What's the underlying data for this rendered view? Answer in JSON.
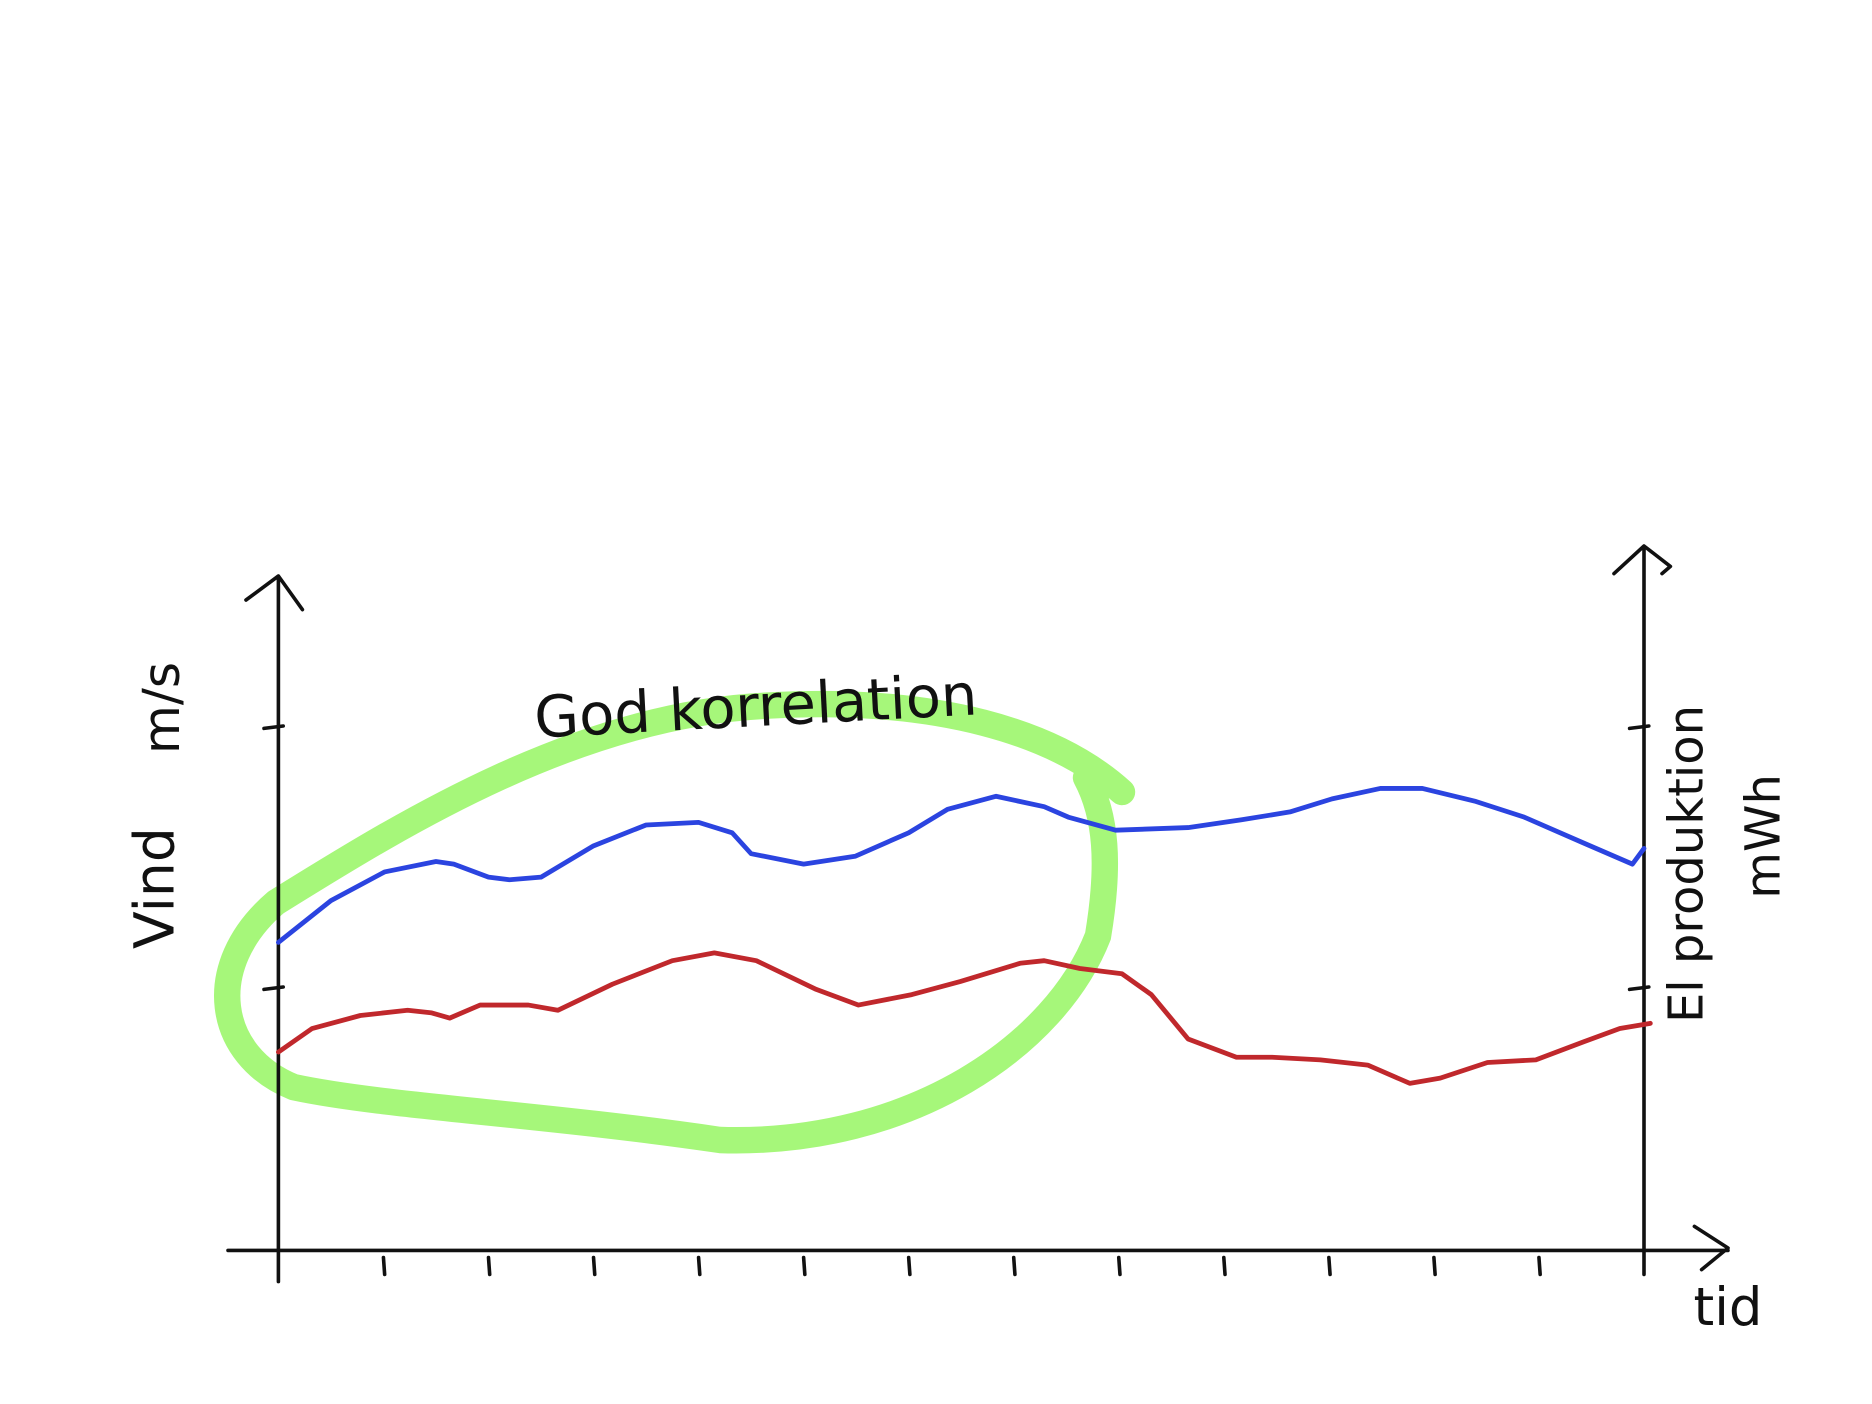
{
  "chart_data": {
    "type": "line",
    "annotation": "God korrelation",
    "ylabel": "Vind",
    "yunit": "m/s",
    "y2label": "El produktion",
    "y2unit": "mWh",
    "xlabel": "tid",
    "xlim": [
      0,
      13
    ],
    "xticks": [
      1,
      2,
      3,
      4,
      5,
      6,
      7,
      8,
      9,
      10,
      11,
      12
    ],
    "ylim": [
      0,
      2.6
    ],
    "yticks": [
      1,
      2
    ],
    "y2lim": [
      0,
      2.7
    ],
    "y2ticks": [
      1,
      2
    ],
    "series": [
      {
        "color": "#2b44e0",
        "x": [
          0,
          0.5,
          1.01,
          1.5,
          1.67,
          2.0,
          2.2,
          2.5,
          3.0,
          3.5,
          4.0,
          4.32,
          4.5,
          5.0,
          5.49,
          6.0,
          6.37,
          6.83,
          7.29,
          7.52,
          7.97,
          8.66,
          9.17,
          9.63,
          10.03,
          10.49,
          10.89,
          11.4,
          11.86,
          12.43,
          12.89,
          13
        ],
        "values": [
          1.18,
          1.34,
          1.45,
          1.49,
          1.48,
          1.43,
          1.42,
          1.43,
          1.55,
          1.63,
          1.64,
          1.6,
          1.52,
          1.48,
          1.51,
          1.6,
          1.69,
          1.74,
          1.7,
          1.66,
          1.61,
          1.62,
          1.65,
          1.68,
          1.73,
          1.77,
          1.77,
          1.72,
          1.66,
          1.56,
          1.48,
          1.54
        ]
      },
      {
        "color": "#c0282c",
        "axis": "y2",
        "x": [
          0,
          0.32,
          0.78,
          1.23,
          1.46,
          1.63,
          1.92,
          2.38,
          2.66,
          3.18,
          3.75,
          4.15,
          4.55,
          5.12,
          5.52,
          6.03,
          6.49,
          7.06,
          7.29,
          7.63,
          8.03,
          8.31,
          8.66,
          9.12,
          9.46,
          9.92,
          10.37,
          10.77,
          11.06,
          11.51,
          11.97,
          12.43,
          12.77,
          13.06
        ],
        "values": [
          0.76,
          0.85,
          0.9,
          0.92,
          0.91,
          0.89,
          0.94,
          0.94,
          0.92,
          1.02,
          1.11,
          1.14,
          1.11,
          1.0,
          0.94,
          0.98,
          1.03,
          1.1,
          1.11,
          1.08,
          1.06,
          0.98,
          0.81,
          0.74,
          0.74,
          0.73,
          0.71,
          0.64,
          0.66,
          0.72,
          0.73,
          0.8,
          0.85,
          0.87
        ]
      }
    ]
  }
}
